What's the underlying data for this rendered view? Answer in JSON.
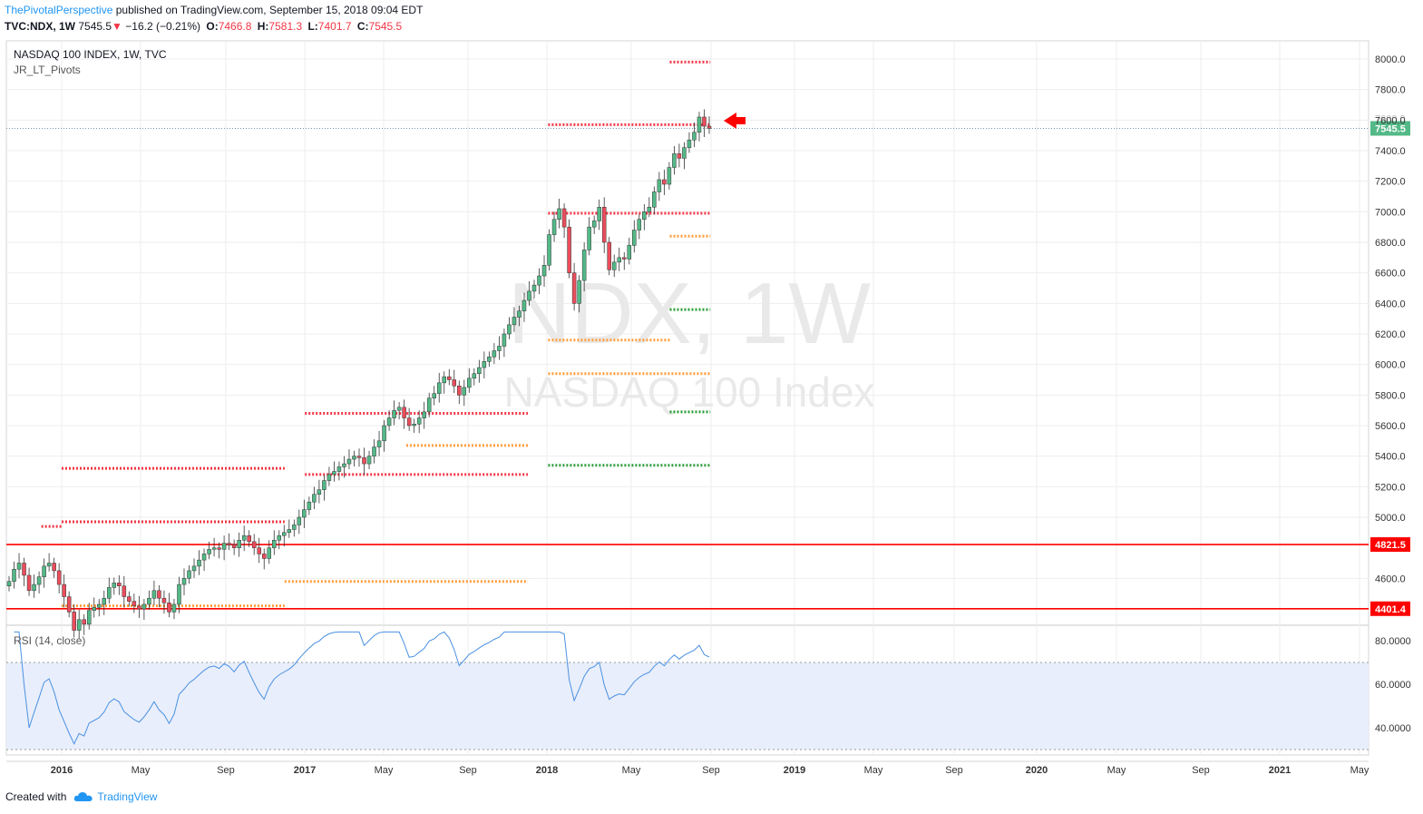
{
  "header": {
    "author": "ThePivotalPerspective",
    "published_text": "published on TradingView.com, September 15, 2018 09:04 EDT",
    "symbol": "TVC:NDX, 1W",
    "last": "7545.5",
    "change": "−16.2 (−0.21%)",
    "open_label": "O:",
    "open": "7466.8",
    "high_label": "H:",
    "high": "7581.3",
    "low_label": "L:",
    "low": "7401.7",
    "close_label": "C:",
    "close": "7545.5"
  },
  "legend": {
    "title": "NASDAQ 100 INDEX, 1W, TVC",
    "indicator": "JR_LT_Pivots"
  },
  "watermark": {
    "symbol": "NDX, 1W",
    "name": "NASDAQ 100 Index"
  },
  "rsi_panel": {
    "label": "RSI (14, close)"
  },
  "footer": {
    "created_with": "Created with",
    "brand": "TradingView"
  },
  "colors": {
    "up": "#53b987",
    "down": "#eb4d5c",
    "pivot_red": "#f23645",
    "pivot_orange": "#ff9e3d",
    "pivot_green": "#2e9e3a",
    "rsi": "#4a90e2",
    "rsi_band": "#e8eefb",
    "hline": "#ff0000"
  },
  "chart_data": {
    "type": "candlestick",
    "y_ticks": [
      "8000.0",
      "7800.0",
      "7600.0",
      "7400.0",
      "7200.0",
      "7000.0",
      "6800.0",
      "6600.0",
      "6400.0",
      "6200.0",
      "6000.0",
      "5800.0",
      "5600.0",
      "5400.0",
      "5200.0",
      "5000.0",
      "4600.0"
    ],
    "x_ticks": [
      "2016",
      "May",
      "Sep",
      "2017",
      "May",
      "Sep",
      "2018",
      "May",
      "Sep",
      "2019",
      "May",
      "Sep",
      "2020",
      "May",
      "Sep",
      "2021",
      "May"
    ],
    "price_labels": {
      "last": "7545.5",
      "upper_line": "4821.5",
      "lower_line": "4401.4",
      "partial_tick": "7600.0"
    },
    "horizontal_lines": [
      4821.5,
      4401.4
    ],
    "rsi_ticks": [
      "80.0000",
      "60.0000",
      "40.0000"
    ],
    "rsi_band": [
      30,
      70
    ],
    "weekly_closes": [
      4580,
      4660,
      4700,
      4620,
      4520,
      4560,
      4610,
      4680,
      4700,
      4650,
      4560,
      4480,
      4380,
      4260,
      4330,
      4300,
      4390,
      4410,
      4430,
      4470,
      4540,
      4570,
      4550,
      4480,
      4450,
      4420,
      4400,
      4430,
      4470,
      4520,
      4470,
      4440,
      4380,
      4430,
      4560,
      4600,
      4650,
      4680,
      4720,
      4760,
      4790,
      4800,
      4790,
      4830,
      4820,
      4800,
      4850,
      4880,
      4840,
      4800,
      4760,
      4730,
      4800,
      4850,
      4880,
      4900,
      4920,
      4950,
      5000,
      5050,
      5100,
      5150,
      5180,
      5240,
      5280,
      5300,
      5330,
      5350,
      5380,
      5400,
      5390,
      5350,
      5400,
      5460,
      5500,
      5600,
      5650,
      5700,
      5720,
      5650,
      5600,
      5610,
      5650,
      5690,
      5780,
      5810,
      5880,
      5920,
      5900,
      5860,
      5800,
      5850,
      5910,
      5940,
      5980,
      6020,
      6050,
      6090,
      6120,
      6200,
      6260,
      6310,
      6350,
      6420,
      6480,
      6520,
      6580,
      6650,
      6850,
      6950,
      7020,
      6900,
      6600,
      6400,
      6550,
      6750,
      6900,
      6940,
      7030,
      6800,
      6620,
      6670,
      6700,
      6690,
      6780,
      6880,
      6950,
      7000,
      7030,
      7130,
      7210,
      7180,
      7290,
      7380,
      7350,
      7420,
      7470,
      7520,
      7620,
      7560,
      7545
    ],
    "pivot_levels": [
      {
        "color": "red",
        "y": 4940,
        "x0": "2015-12",
        "x1": "2016-01"
      },
      {
        "color": "red",
        "y": 5320,
        "x0": "2016-01",
        "x1": "2016-12"
      },
      {
        "color": "red",
        "y": 4970,
        "x0": "2016-01",
        "x1": "2016-12"
      },
      {
        "color": "red",
        "y": 5680,
        "x0": "2017-01",
        "x1": "2017-12"
      },
      {
        "color": "red",
        "y": 5280,
        "x0": "2017-01",
        "x1": "2017-12"
      },
      {
        "color": "orange",
        "y": 4580,
        "x0": "2016-12",
        "x1": "2017-12"
      },
      {
        "color": "orange",
        "y": 4420,
        "x0": "2016-01",
        "x1": "2016-12"
      },
      {
        "color": "orange",
        "y": 5470,
        "x0": "2017-06",
        "x1": "2017-12"
      },
      {
        "color": "red",
        "y": 7570,
        "x0": "2018-01",
        "x1": "2018-09"
      },
      {
        "color": "red",
        "y": 6990,
        "x0": "2018-01",
        "x1": "2018-09"
      },
      {
        "color": "orange",
        "y": 5940,
        "x0": "2018-01",
        "x1": "2018-09"
      },
      {
        "color": "orange",
        "y": 6160,
        "x0": "2018-01",
        "x1": "2018-07"
      },
      {
        "color": "green",
        "y": 5340,
        "x0": "2018-01",
        "x1": "2018-09"
      },
      {
        "color": "red",
        "y": 7980,
        "x0": "2018-07",
        "x1": "2018-09"
      },
      {
        "color": "orange",
        "y": 6840,
        "x0": "2018-07",
        "x1": "2018-09"
      },
      {
        "color": "green",
        "y": 6360,
        "x0": "2018-07",
        "x1": "2018-09"
      },
      {
        "color": "green",
        "y": 5690,
        "x0": "2018-07",
        "x1": "2018-09"
      }
    ]
  }
}
